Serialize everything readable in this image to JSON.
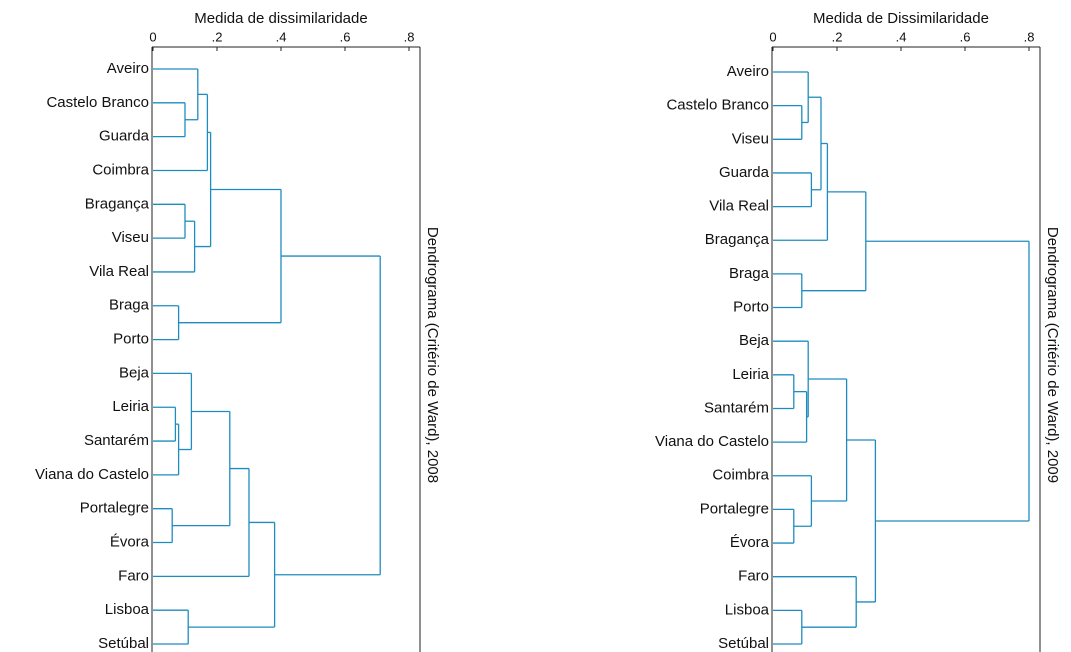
{
  "chart_data": [
    {
      "type": "dendrogram",
      "title": "Dendrograma (Critério de Ward), 2008",
      "xlabel": "Medida de dissimilaridade",
      "xlim": [
        0,
        0.8
      ],
      "xticks": [
        0,
        {
          "value": 0.2,
          "label": ".2"
        },
        {
          "value": 0.4,
          "label": ".4"
        },
        {
          "value": 0.6,
          "label": ".6"
        },
        {
          "value": 0.8,
          "label": ".8"
        }
      ],
      "color": "#1f8cbf",
      "tree": {
        "height": 0.71,
        "children": [
          {
            "height": 0.4,
            "children": [
              {
                "height": 0.18,
                "children": [
                  {
                    "height": 0.17,
                    "children": [
                      {
                        "height": 0.14,
                        "children": [
                          "Aveiro",
                          {
                            "height": 0.1,
                            "children": [
                              "Castelo Branco",
                              "Guarda"
                            ]
                          }
                        ]
                      },
                      "Coimbra"
                    ]
                  },
                  {
                    "height": 0.13,
                    "children": [
                      {
                        "height": 0.1,
                        "children": [
                          "Bragança",
                          "Viseu"
                        ]
                      },
                      "Vila Real"
                    ]
                  }
                ]
              },
              {
                "height": 0.08,
                "children": [
                  "Braga",
                  "Porto"
                ]
              }
            ]
          },
          {
            "height": 0.38,
            "children": [
              {
                "height": 0.3,
                "children": [
                  {
                    "height": 0.24,
                    "children": [
                      {
                        "height": 0.12,
                        "children": [
                          "Beja",
                          {
                            "height": 0.08,
                            "children": [
                              {
                                "height": 0.07,
                                "children": [
                                  "Leiria",
                                  "Santarém"
                                ]
                              },
                              "Viana do Castelo"
                            ]
                          }
                        ]
                      },
                      {
                        "height": 0.06,
                        "children": [
                          "Portalegre",
                          "Évora"
                        ]
                      }
                    ]
                  },
                  "Faro"
                ]
              },
              {
                "height": 0.11,
                "children": [
                  "Lisboa",
                  "Setúbal"
                ]
              }
            ]
          }
        ]
      }
    },
    {
      "type": "dendrogram",
      "title": "Dendrograma (Critério de Ward), 2009",
      "xlabel": "Medida de Dissimilaridade",
      "xlim": [
        0,
        0.8
      ],
      "xticks": [
        0,
        {
          "value": 0.2,
          "label": ".2"
        },
        {
          "value": 0.4,
          "label": ".4"
        },
        {
          "value": 0.6,
          "label": ".6"
        },
        {
          "value": 0.8,
          "label": ".8"
        }
      ],
      "color": "#1f8cbf",
      "tree": {
        "height": 0.8,
        "children": [
          {
            "height": 0.29,
            "children": [
              {
                "height": 0.17,
                "children": [
                  {
                    "height": 0.15,
                    "children": [
                      {
                        "height": 0.11,
                        "children": [
                          "Aveiro",
                          {
                            "height": 0.09,
                            "children": [
                              "Castelo Branco",
                              "Viseu"
                            ]
                          }
                        ]
                      },
                      {
                        "height": 0.12,
                        "children": [
                          "Guarda",
                          "Vila Real"
                        ]
                      }
                    ]
                  },
                  "Bragança"
                ]
              },
              {
                "height": 0.09,
                "children": [
                  "Braga",
                  "Porto"
                ]
              }
            ]
          },
          {
            "height": 0.32,
            "children": [
              {
                "height": 0.23,
                "children": [
                  {
                    "height": 0.11,
                    "children": [
                      "Beja",
                      {
                        "height": 0.105,
                        "children": [
                          {
                            "height": 0.065,
                            "children": [
                              "Leiria",
                              "Santarém"
                            ]
                          },
                          "Viana do Castelo"
                        ]
                      }
                    ]
                  },
                  {
                    "height": 0.12,
                    "children": [
                      "Coimbra",
                      {
                        "height": 0.065,
                        "children": [
                          "Portalegre",
                          "Évora"
                        ]
                      }
                    ]
                  }
                ]
              },
              {
                "height": 0.26,
                "children": [
                  "Faro",
                  {
                    "height": 0.09,
                    "children": [
                      "Lisboa",
                      "Setúbal"
                    ]
                  }
                ]
              }
            ]
          }
        ]
      }
    }
  ]
}
